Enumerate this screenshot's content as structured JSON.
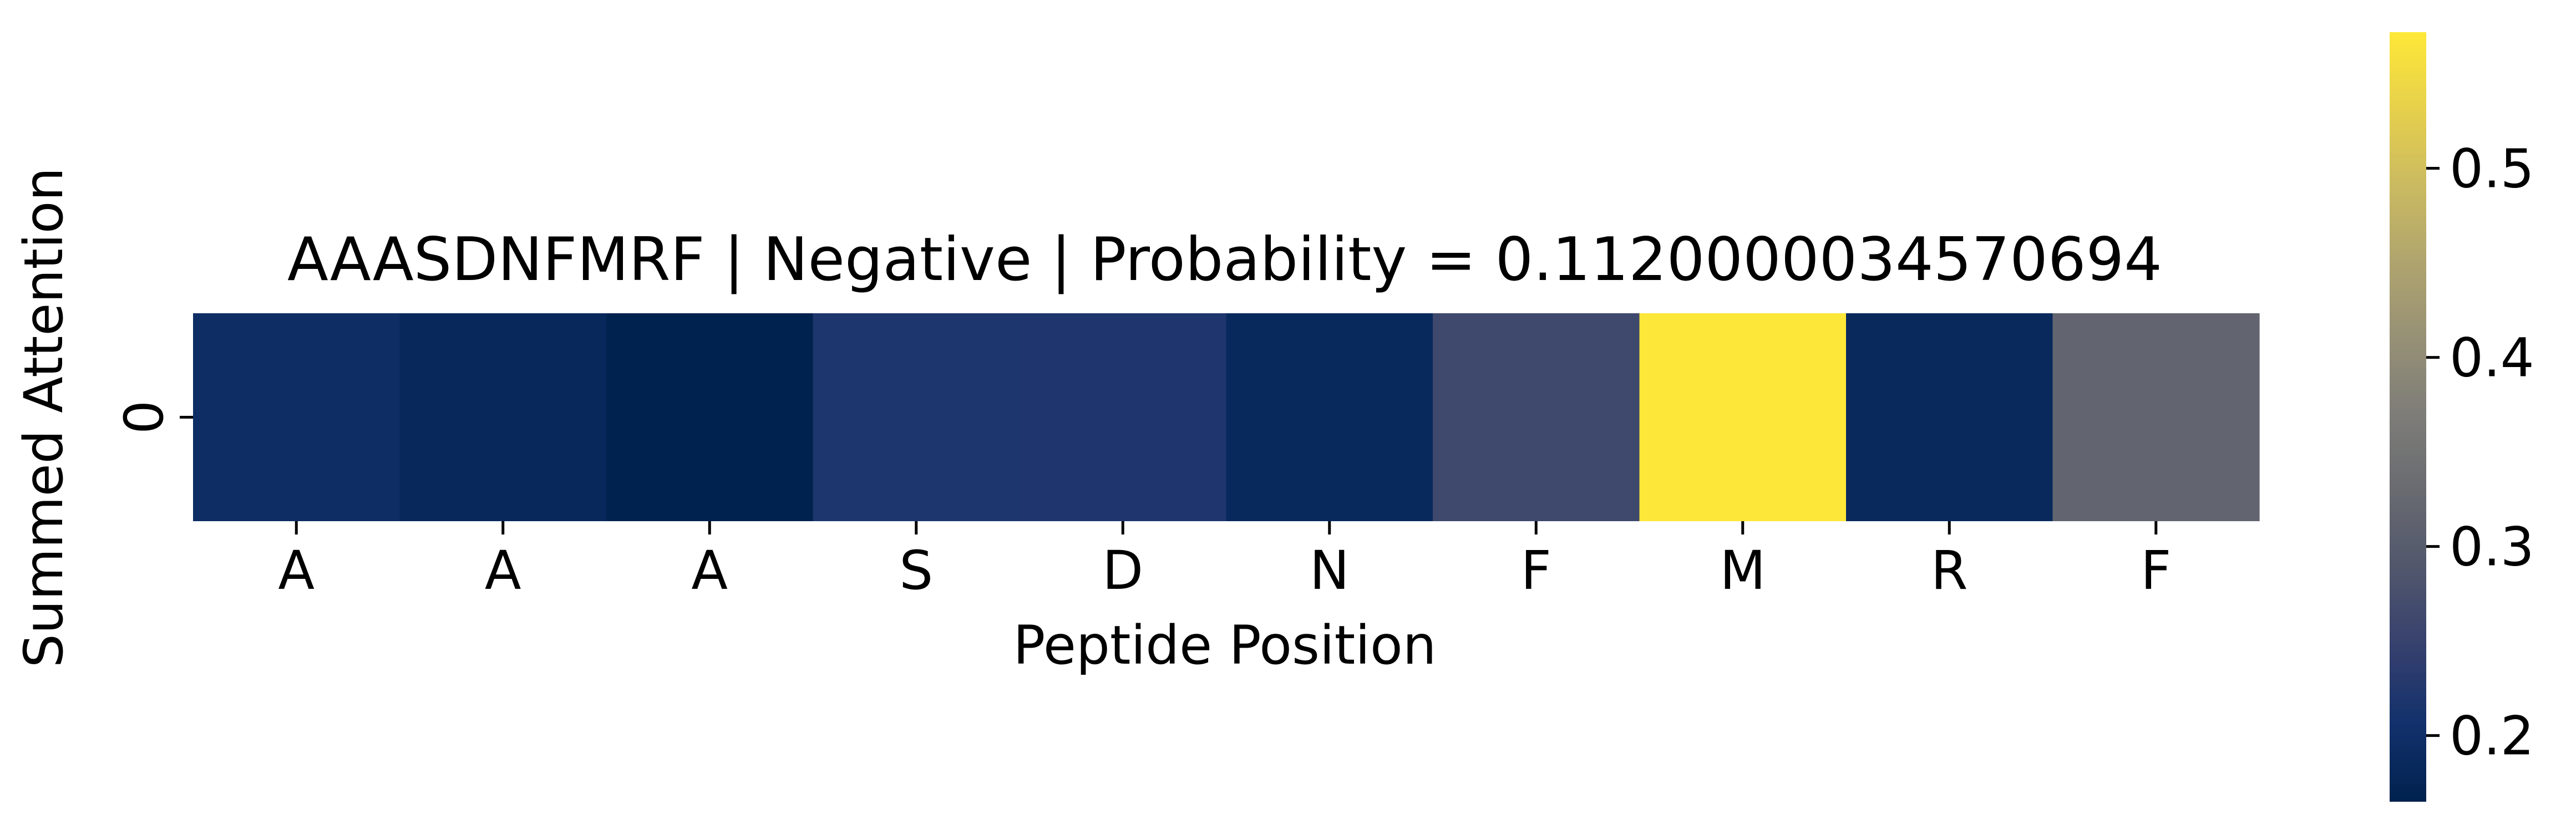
{
  "chart_data": {
    "type": "heatmap",
    "title": "AAASDNFMRF | Negative | Probability = 0.1120000034570694",
    "xlabel": "Peptide Position",
    "ylabel": "Summed Attention",
    "x_categories": [
      "A",
      "A",
      "A",
      "S",
      "D",
      "N",
      "F",
      "M",
      "R",
      "F"
    ],
    "y_categories": [
      "0"
    ],
    "values": [
      [
        0.195,
        0.182,
        0.166,
        0.218,
        0.22,
        0.184,
        0.262,
        0.57,
        0.185,
        0.318
      ]
    ],
    "colormap": "cividis",
    "color_range": [
      0.165,
      0.572
    ],
    "colorbar_ticks": [
      0.2,
      0.3,
      0.4,
      0.5
    ],
    "colorbar_tick_labels": [
      "0.2",
      "0.3",
      "0.4",
      "0.5"
    ],
    "grid": false,
    "colorbar": "right"
  }
}
